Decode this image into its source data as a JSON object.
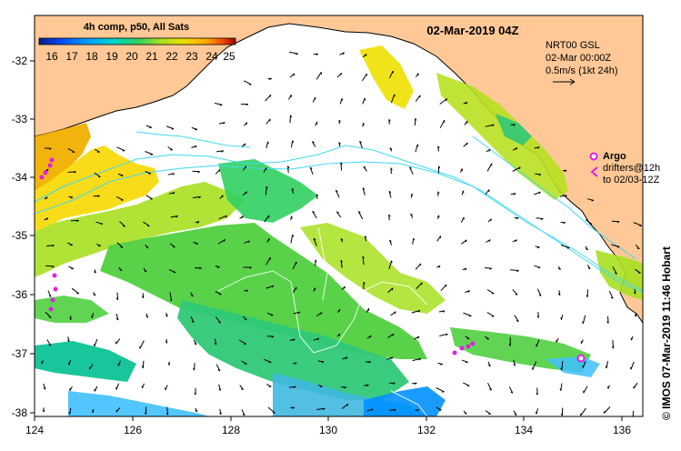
{
  "title": "02-Mar-2019 04Z",
  "colorbar": {
    "title": "4h comp, p50, All Sats",
    "ticks": [
      "16",
      "17",
      "18",
      "19",
      "20",
      "21",
      "22",
      "23",
      "24",
      "25"
    ],
    "colors": [
      "#0a1a8c",
      "#0050ff",
      "#00a0ff",
      "#00d8c8",
      "#30d060",
      "#a8e020",
      "#f0e000",
      "#ffa000",
      "#f04000",
      "#a00000"
    ]
  },
  "current_info": {
    "model": "NRT00 GSL",
    "time": "02-Mar 00:00Z",
    "scale": "0.5m/s (1kt 24h)"
  },
  "argo": {
    "label": "Argo",
    "drifters_line1": "drifters@12h",
    "drifters_line2": "to 02/03-12Z",
    "color": "#e020e0"
  },
  "credit": "© IMOS 07-Mar-2019 11:46 Hobart",
  "axes": {
    "x_ticks": [
      "124",
      "126",
      "128",
      "130",
      "132",
      "134",
      "136"
    ],
    "y_ticks": [
      "-32",
      "-33",
      "-34",
      "-35",
      "-36",
      "-37",
      "-38"
    ]
  },
  "colors": {
    "land": "#ffc896",
    "ocean": "#ffffff",
    "contour": "#40d8f0"
  }
}
